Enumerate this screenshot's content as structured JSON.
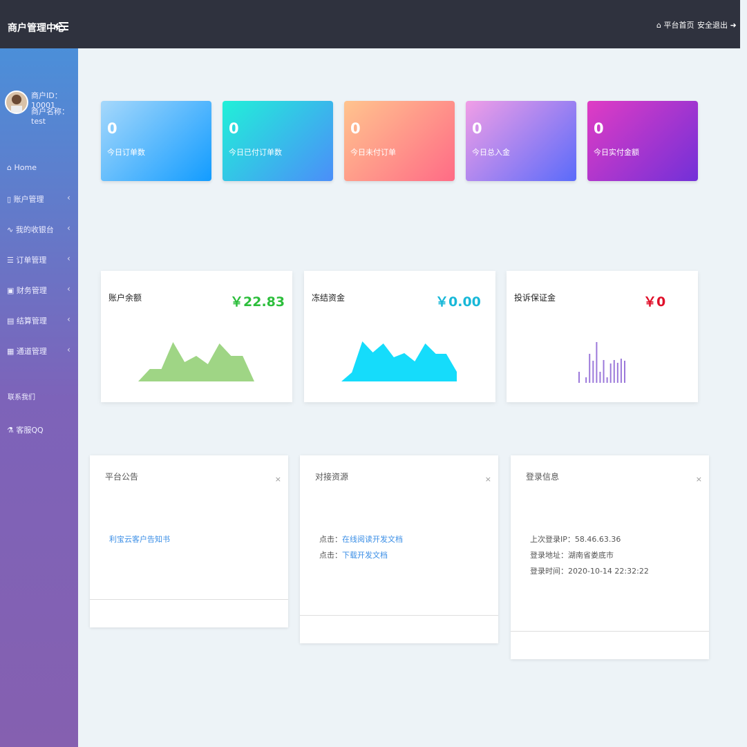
{
  "header": {
    "title": "商户管理中心",
    "links": [
      "平台首页",
      "安全退出"
    ]
  },
  "sidebar": {
    "user_id": "商户ID：10001",
    "user_name": "商户名称：test",
    "menu": [
      "Home",
      "账户管理",
      "我的收银台",
      "订单管理",
      "财务管理",
      "结算管理",
      "通道管理"
    ],
    "contact_title": "联系我们",
    "contact_item": "客服QQ"
  },
  "stats": [
    {
      "value": 0,
      "label": "今日订单数"
    },
    {
      "value": 0,
      "label": "今日已付订单数"
    },
    {
      "value": 0,
      "label": "今日未付订单"
    },
    {
      "value": 0,
      "label": "今日总入金"
    },
    {
      "value": 0,
      "label": "今日实付金额"
    }
  ],
  "balances": [
    {
      "label": "账户余额",
      "amount": "￥22.83",
      "chart": {
        "type": "area",
        "values": [
          0,
          18,
          18,
          57,
          28,
          37,
          25,
          55,
          37,
          37,
          0
        ]
      }
    },
    {
      "label": "冻结资金",
      "amount": "￥0.00",
      "chart": {
        "type": "area",
        "values": [
          0,
          13,
          58,
          42,
          55,
          35,
          41,
          29,
          55,
          40,
          40,
          14
        ]
      }
    },
    {
      "label": "投诉保证金",
      "amount": "￥0",
      "chart": {
        "type": "bar",
        "values": [
          16,
          0,
          8,
          42,
          32,
          59,
          16,
          33,
          8,
          28,
          33,
          29,
          35,
          32
        ]
      }
    }
  ],
  "panels": [
    {
      "title": "平台公告",
      "close": "×",
      "links": [
        "利宝云客户告知书"
      ]
    },
    {
      "title": "对接资源",
      "close": "×",
      "rows": [
        {
          "prefix": "点击：",
          "link": "在线阅读开发文档"
        },
        {
          "prefix": "点击：",
          "link": "下载开发文档"
        }
      ]
    },
    {
      "title": "登录信息",
      "close": "×",
      "lines": [
        "上次登录IP：58.46.63.36",
        "登录地址：湖南省娄底市",
        "登录时间：2020-10-14 22:32:22"
      ]
    }
  ]
}
